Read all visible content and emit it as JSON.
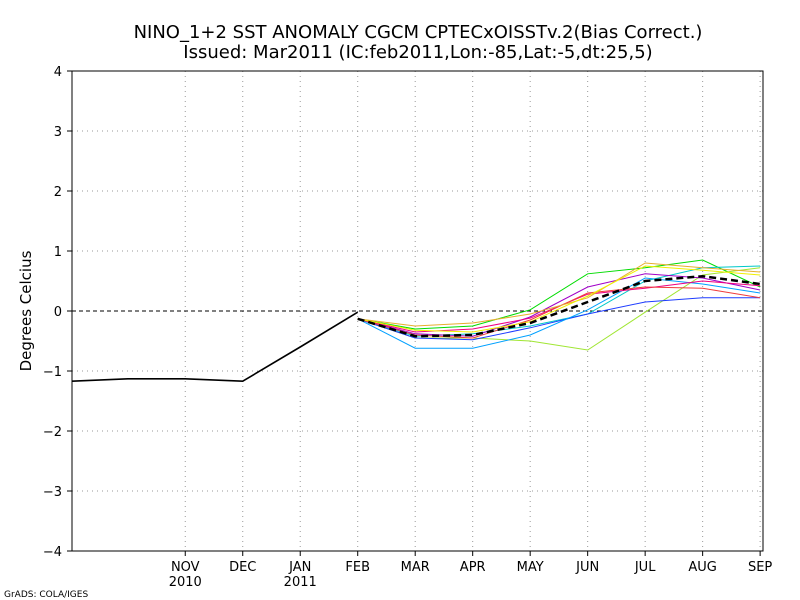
{
  "chart_data": {
    "type": "line",
    "title": "NINO_1+2 SST ANOMALY CGCM CPTECxOISSTv.2(Bias Correct.)",
    "subtitle": "Issued:  Mar2011 (IC:feb2011,Lon:-85,Lat:-5,dt:25,5)",
    "xlabel": "",
    "ylabel": "Degrees Celcius",
    "ylim": [
      -4,
      4
    ],
    "yticks": [
      -4,
      -3,
      -2,
      -1,
      0,
      1,
      2,
      3,
      4
    ],
    "ytick_labels": [
      "−4",
      "−3",
      "−2",
      "−1",
      "0",
      "1",
      "2",
      "3",
      "4"
    ],
    "xlim": [
      -0.97,
      11.05
    ],
    "xticks": [
      {
        "x": 1,
        "label": "NOV",
        "sublabel": "2010"
      },
      {
        "x": 2,
        "label": "DEC",
        "sublabel": ""
      },
      {
        "x": 3,
        "label": "JAN",
        "sublabel": "2011"
      },
      {
        "x": 4,
        "label": "FEB",
        "sublabel": ""
      },
      {
        "x": 5,
        "label": "MAR",
        "sublabel": ""
      },
      {
        "x": 6,
        "label": "APR",
        "sublabel": ""
      },
      {
        "x": 7,
        "label": "MAY",
        "sublabel": ""
      },
      {
        "x": 8,
        "label": "JUN",
        "sublabel": ""
      },
      {
        "x": 9,
        "label": "JUL",
        "sublabel": ""
      },
      {
        "x": 10,
        "label": "AUG",
        "sublabel": ""
      },
      {
        "x": 11,
        "label": "SEP",
        "sublabel": ""
      }
    ],
    "grid": true,
    "zero_line": true,
    "observed": {
      "name": "observed",
      "color": "#000000",
      "x": [
        -0.97,
        0,
        1,
        2,
        3,
        4
      ],
      "y": [
        -1.17,
        -1.13,
        -1.13,
        -1.17,
        -0.6,
        -0.02
      ]
    },
    "ensemble_x": [
      4,
      5,
      6,
      7,
      8,
      9,
      10,
      11
    ],
    "members": [
      {
        "name": "member-1",
        "color": "#00dc00",
        "y": [
          -0.13,
          -0.3,
          -0.25,
          0.02,
          0.62,
          0.72,
          0.85,
          0.4
        ]
      },
      {
        "name": "member-2",
        "color": "#a0e632",
        "y": [
          -0.13,
          -0.45,
          -0.45,
          -0.5,
          -0.65,
          -0.02,
          0.6,
          0.72
        ]
      },
      {
        "name": "member-3",
        "color": "#00c8c8",
        "y": [
          -0.13,
          -0.42,
          -0.38,
          -0.25,
          -0.05,
          0.5,
          0.72,
          0.75
        ]
      },
      {
        "name": "member-4",
        "color": "#1e3cff",
        "y": [
          -0.13,
          -0.45,
          -0.48,
          -0.28,
          -0.05,
          0.15,
          0.22,
          0.22
        ]
      },
      {
        "name": "member-5",
        "color": "#00a0ff",
        "y": [
          -0.13,
          -0.62,
          -0.62,
          -0.4,
          0.02,
          0.55,
          0.45,
          0.3
        ]
      },
      {
        "name": "member-6",
        "color": "#a000c8",
        "y": [
          -0.13,
          -0.38,
          -0.42,
          -0.1,
          0.4,
          0.62,
          0.55,
          0.35
        ]
      },
      {
        "name": "member-7",
        "color": "#f00082",
        "y": [
          -0.13,
          -0.35,
          -0.3,
          -0.12,
          0.28,
          0.38,
          0.5,
          0.42
        ]
      },
      {
        "name": "member-8",
        "color": "#f03c3c",
        "y": [
          -0.13,
          -0.4,
          -0.45,
          -0.15,
          0.3,
          0.4,
          0.38,
          0.22
        ]
      },
      {
        "name": "member-9",
        "color": "#e6af2d",
        "y": [
          -0.13,
          -0.25,
          -0.2,
          -0.05,
          0.22,
          0.8,
          0.72,
          0.65
        ]
      },
      {
        "name": "member-10",
        "color": "#f0f000",
        "y": [
          -0.13,
          -0.32,
          -0.35,
          -0.18,
          0.25,
          0.75,
          0.68,
          0.6
        ]
      }
    ],
    "ensemble_mean": {
      "name": "ensemble-mean",
      "color": "#000000",
      "style": "dashed",
      "y": [
        -0.13,
        -0.42,
        -0.4,
        -0.2,
        0.15,
        0.5,
        0.58,
        0.45
      ]
    }
  },
  "footer": {
    "credit": "GrADS: COLA/IGES"
  }
}
